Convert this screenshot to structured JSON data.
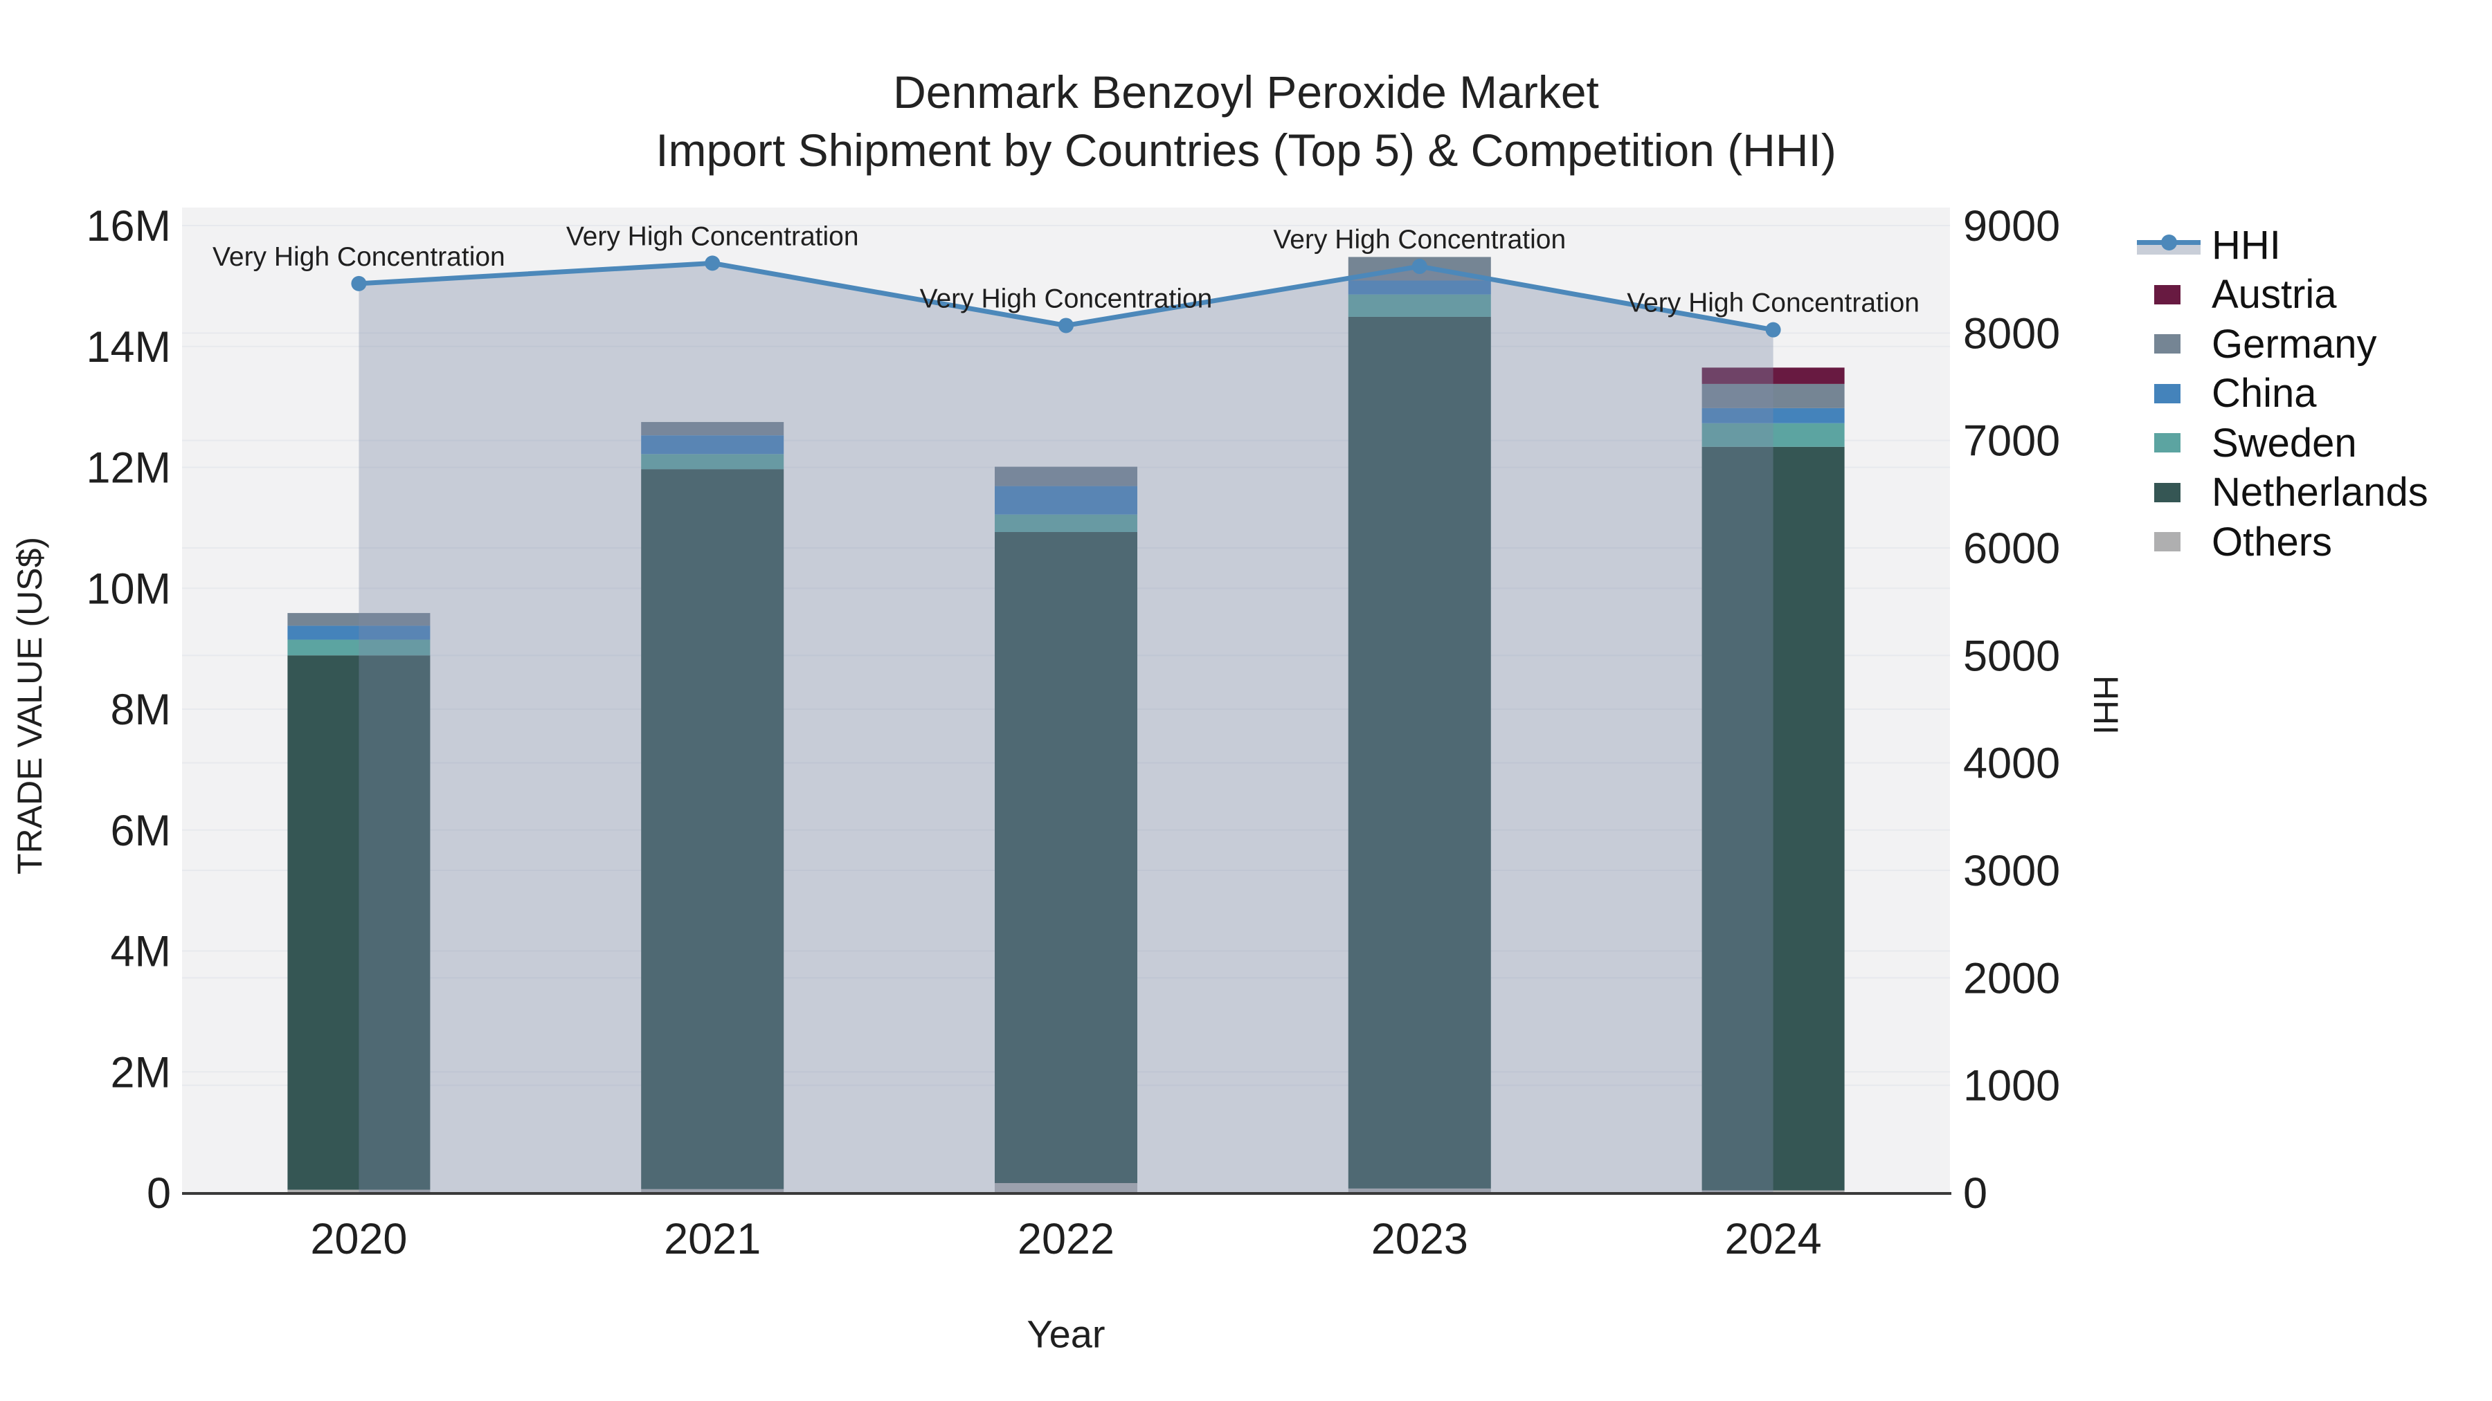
{
  "title": {
    "line1": "Denmark Benzoyl Peroxide Market",
    "line2": "Import Shipment by Countries (Top 5) & Competition (HHI)"
  },
  "axes": {
    "left_title": "TRADE VALUE (US$)",
    "right_title": "HHI",
    "x_title": "Year",
    "left_ticks": [
      "0",
      "2M",
      "4M",
      "6M",
      "8M",
      "10M",
      "12M",
      "14M",
      "16M"
    ],
    "right_ticks": [
      "0",
      "1000",
      "2000",
      "3000",
      "4000",
      "5000",
      "6000",
      "7000",
      "8000",
      "9000"
    ]
  },
  "legend": {
    "entries": [
      {
        "id": "hhi",
        "label": "HHI",
        "type": "line",
        "color": "#4C88BA"
      },
      {
        "id": "austria",
        "label": "Austria",
        "type": "swatch",
        "color": "#681A41"
      },
      {
        "id": "germany",
        "label": "Germany",
        "type": "swatch",
        "color": "#758594"
      },
      {
        "id": "china",
        "label": "China",
        "type": "swatch",
        "color": "#4483BB"
      },
      {
        "id": "sweden",
        "label": "Sweden",
        "type": "swatch",
        "color": "#5CA4A1"
      },
      {
        "id": "netherlands",
        "label": "Netherlands",
        "type": "swatch",
        "color": "#355654"
      },
      {
        "id": "others",
        "label": "Others",
        "type": "swatch",
        "color": "#AFAFB0"
      }
    ]
  },
  "chart_data": {
    "type": "combo-stacked-bar-line",
    "title": "Denmark Benzoyl Peroxide Market — Import Shipment by Countries (Top 5) & Competition (HHI)",
    "categories": [
      "2020",
      "2021",
      "2022",
      "2023",
      "2024"
    ],
    "xlabel": "Year",
    "y_left": {
      "label": "TRADE VALUE (US$)",
      "range_millions": [
        0,
        16
      ],
      "tick_step_millions": 2
    },
    "y_right": {
      "label": "HHI",
      "range": [
        0,
        9000
      ],
      "tick_step": 1000
    },
    "bar_value_unit": "million US$",
    "series": [
      {
        "name": "Austria",
        "color": "#681A41",
        "values": [
          0,
          0,
          0,
          0,
          0.27
        ]
      },
      {
        "name": "Germany",
        "color": "#758594",
        "values": [
          0.21,
          0.22,
          0.32,
          0.39,
          0.4
        ]
      },
      {
        "name": "China",
        "color": "#4483BB",
        "values": [
          0.23,
          0.31,
          0.47,
          0.23,
          0.25
        ]
      },
      {
        "name": "Sweden",
        "color": "#5CA4A1",
        "values": [
          0.26,
          0.25,
          0.29,
          0.37,
          0.39
        ]
      },
      {
        "name": "Netherlands",
        "color": "#355654",
        "values": [
          8.84,
          11.91,
          10.77,
          14.42,
          12.3
        ]
      },
      {
        "name": "Others",
        "color": "#AFAFB0",
        "values": [
          0.05,
          0.06,
          0.16,
          0.07,
          0.04
        ]
      }
    ],
    "stack_order_bottom_to_top": [
      "Others",
      "Netherlands",
      "Sweden",
      "China",
      "Germany",
      "Austria"
    ],
    "bar_totals_millions": [
      9.59,
      12.75,
      12.01,
      15.48,
      13.65
    ],
    "line_series": {
      "name": "HHI",
      "color": "#4C88BA",
      "area_fill": "rgba(124,138,168,0.37)",
      "values": [
        8460,
        8650,
        8070,
        8620,
        8030
      ]
    },
    "annotations": [
      "Very High Concentration",
      "Very High Concentration",
      "Very High Concentration",
      "Very High Concentration",
      "Very High Concentration"
    ],
    "legend_position": "right",
    "grid": true
  },
  "colors": {
    "plot_bg": "#f2f2f3",
    "grid_line": "#e7e9ed",
    "axis_line": "#3a3a3a",
    "annotation_text": "#111111",
    "tick_text": "#1f1f1f"
  }
}
